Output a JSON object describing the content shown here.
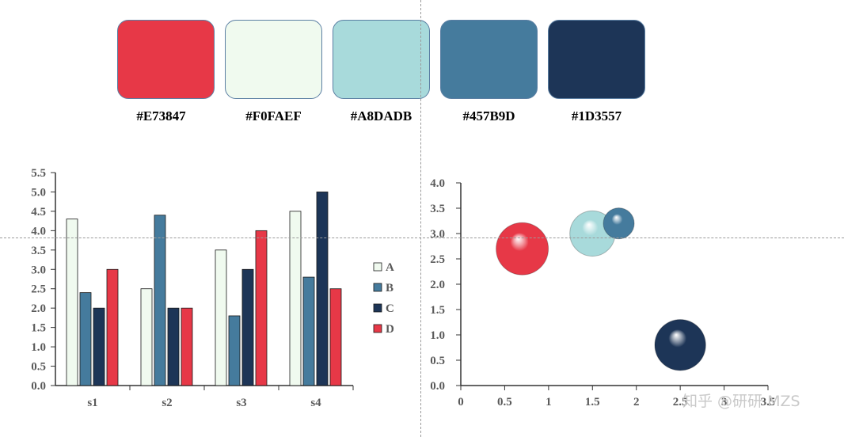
{
  "palette": {
    "swatches": [
      {
        "hex": "#E73847",
        "label": "#E73847"
      },
      {
        "hex": "#F0FAEF",
        "label": "#F0FAEF"
      },
      {
        "hex": "#A8DADB",
        "label": "#A8DADB"
      },
      {
        "hex": "#457B9D",
        "label": "#457B9D"
      },
      {
        "hex": "#1D3557",
        "label": "#1D3557"
      }
    ]
  },
  "watermark": "知乎 @研研 MZS",
  "chart_data": [
    {
      "type": "bar",
      "categories": [
        "s1",
        "s2",
        "s3",
        "s4"
      ],
      "series": [
        {
          "name": "A",
          "color": "#F0FAEF",
          "values": [
            4.3,
            2.5,
            3.5,
            4.5
          ]
        },
        {
          "name": "B",
          "color": "#457B9D",
          "values": [
            2.4,
            4.4,
            1.8,
            2.8
          ]
        },
        {
          "name": "C",
          "color": "#1D3557",
          "values": [
            2.0,
            2.0,
            3.0,
            5.0
          ]
        },
        {
          "name": "D",
          "color": "#E73847",
          "values": [
            3.0,
            2.0,
            4.0,
            2.5
          ]
        }
      ],
      "ylim": [
        0,
        5.5
      ],
      "yticks": [
        "0.0",
        "0.5",
        "1.0",
        "1.5",
        "2.0",
        "2.5",
        "3.0",
        "3.5",
        "4.0",
        "4.5",
        "5.0",
        "5.5"
      ],
      "legend": "right",
      "grid": false
    },
    {
      "type": "scatter",
      "subtype": "bubble",
      "points": [
        {
          "x": 0.7,
          "y": 2.7,
          "size": 1.0,
          "color": "#E73847"
        },
        {
          "x": 1.5,
          "y": 3.0,
          "size": 0.75,
          "color": "#A8DADB"
        },
        {
          "x": 1.8,
          "y": 3.2,
          "size": 0.35,
          "color": "#457B9D"
        },
        {
          "x": 2.5,
          "y": 0.8,
          "size": 0.95,
          "color": "#1D3557"
        }
      ],
      "xlim": [
        0,
        3.5
      ],
      "ylim": [
        0,
        4.0
      ],
      "xticks": [
        "0",
        "0.5",
        "1",
        "1.5",
        "2",
        "2.5",
        "3",
        "3.5"
      ],
      "yticks": [
        "0.0",
        "0.5",
        "1.0",
        "1.5",
        "2.0",
        "2.5",
        "3.0",
        "3.5",
        "4.0"
      ],
      "grid": false
    }
  ]
}
